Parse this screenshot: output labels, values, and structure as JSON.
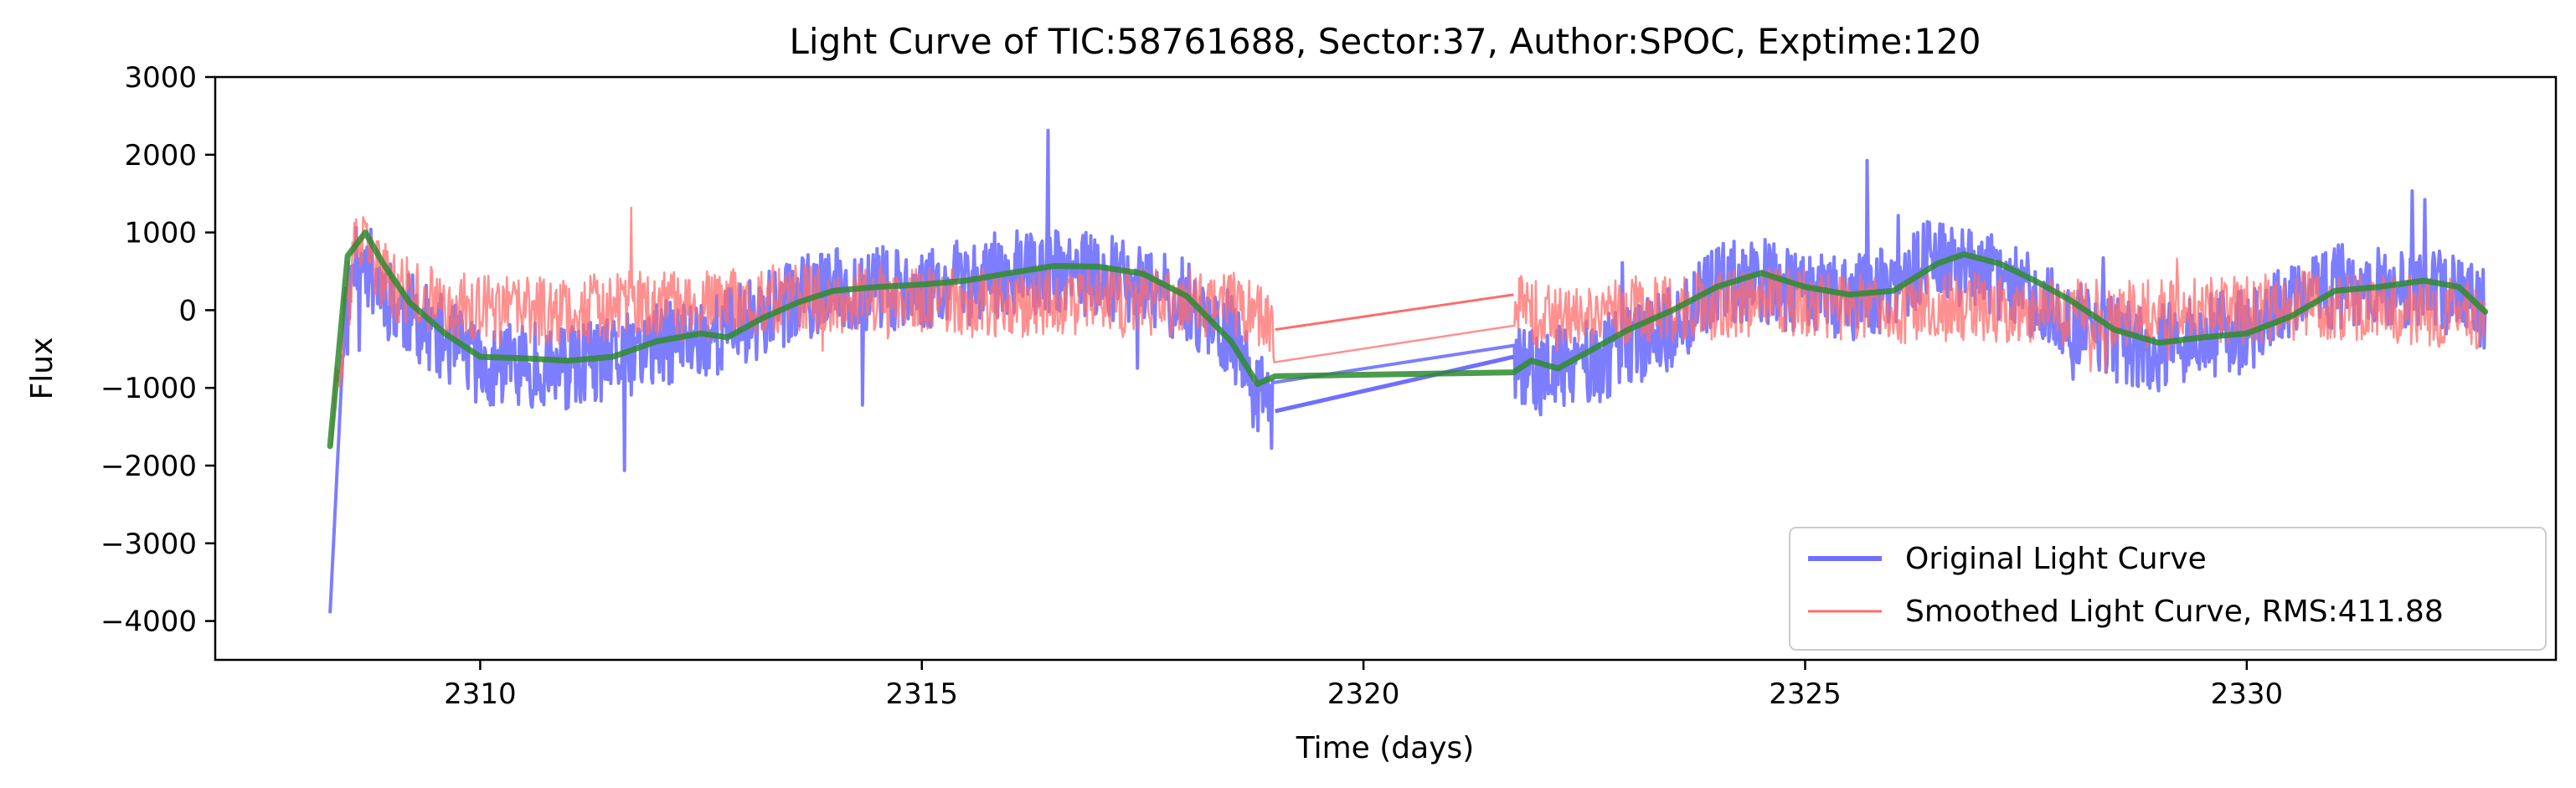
{
  "chart_data": {
    "type": "line",
    "title": "Light Curve of TIC:58761688, Sector:37, Author:SPOC, Exptime:120",
    "xlabel": "Time (days)",
    "ylabel": "Flux",
    "xlim": [
      2307,
      2333.5
    ],
    "ylim": [
      -4500,
      3000
    ],
    "xticks": [
      2310,
      2315,
      2320,
      2325,
      2330
    ],
    "yticks": [
      -4000,
      -3000,
      -2000,
      -1000,
      0,
      1000,
      2000,
      3000
    ],
    "xtick_labels": [
      "2310",
      "2315",
      "2320",
      "2325",
      "2330"
    ],
    "ytick_labels": [
      "−4000",
      "−3000",
      "−2000",
      "−1000",
      "0",
      "1000",
      "2000",
      "3000"
    ],
    "grid": false,
    "legend_position": "lower-right",
    "legend": [
      {
        "label": "Original Light Curve",
        "color": "#7070ff"
      },
      {
        "label": "Smoothed Light Curve, RMS:411.88",
        "color": "#ff6b6b"
      }
    ],
    "gap": [
      2319.0,
      2321.7
    ],
    "time_range": [
      2308.3,
      2332.7
    ],
    "series": [
      {
        "name": "Original Light Curve",
        "color": "#6f6fff",
        "noise_amplitude": 550,
        "x": [
          2308.3,
          2308.6,
          2309.0,
          2309.5,
          2310.0,
          2310.5,
          2311.0,
          2311.5,
          2312.0,
          2312.5,
          2313.0,
          2313.5,
          2314.0,
          2314.5,
          2315.0,
          2315.5,
          2316.0,
          2316.5,
          2317.0,
          2317.5,
          2318.0,
          2318.5,
          2318.8,
          2319.0,
          2321.7,
          2322.0,
          2322.5,
          2323.0,
          2323.5,
          2324.0,
          2324.5,
          2325.0,
          2325.5,
          2326.0,
          2326.5,
          2327.0,
          2327.5,
          2328.0,
          2328.5,
          2329.0,
          2329.5,
          2330.0,
          2330.5,
          2331.0,
          2331.5,
          2332.0,
          2332.7
        ],
        "y": [
          -1700,
          800,
          100,
          -300,
          -700,
          -700,
          -750,
          -650,
          -450,
          -350,
          -150,
          100,
          250,
          300,
          300,
          350,
          500,
          500,
          450,
          300,
          100,
          -300,
          -1100,
          -1300,
          -600,
          -800,
          -700,
          -500,
          -200,
          300,
          400,
          200,
          150,
          300,
          700,
          500,
          200,
          -100,
          -400,
          -500,
          -300,
          -300,
          100,
          300,
          350,
          300,
          0
        ]
      },
      {
        "name": "Smoothed Light Curve, RMS:411.88",
        "color": "#ff6b6b",
        "noise_amplitude": 450,
        "x": [
          2308.3,
          2308.6,
          2309.0,
          2309.5,
          2310.0,
          2310.5,
          2311.0,
          2311.5,
          2312.0,
          2312.5,
          2313.0,
          2313.5,
          2314.0,
          2314.5,
          2315.0,
          2315.5,
          2316.0,
          2316.5,
          2317.0,
          2317.5,
          2318.0,
          2318.5,
          2318.8,
          2319.0,
          2321.7,
          2322.0,
          2322.5,
          2323.0,
          2323.5,
          2324.0,
          2324.5,
          2325.0,
          2325.5,
          2326.0,
          2326.5,
          2327.0,
          2327.5,
          2328.0,
          2328.5,
          2329.0,
          2329.5,
          2330.0,
          2330.5,
          2331.0,
          2331.5,
          2332.0,
          2332.7
        ],
        "y": [
          -1500,
          900,
          300,
          100,
          0,
          0,
          0,
          50,
          50,
          50,
          100,
          150,
          150,
          150,
          100,
          100,
          100,
          100,
          100,
          100,
          100,
          100,
          0,
          -250,
          200,
          -100,
          -100,
          0,
          0,
          50,
          100,
          100,
          50,
          0,
          50,
          50,
          0,
          -50,
          -50,
          -50,
          0,
          0,
          50,
          50,
          0,
          0,
          -100
        ]
      },
      {
        "name": "",
        "color": "#2e8b2e",
        "x": [
          2308.3,
          2308.5,
          2308.7,
          2308.9,
          2309.2,
          2309.6,
          2310.0,
          2310.5,
          2311.0,
          2311.5,
          2312.0,
          2312.5,
          2312.8,
          2313.2,
          2313.6,
          2314.0,
          2314.5,
          2315.0,
          2315.5,
          2316.0,
          2316.5,
          2317.0,
          2317.5,
          2318.0,
          2318.5,
          2318.8,
          2319.0,
          2321.7,
          2321.9,
          2322.2,
          2322.6,
          2323.0,
          2323.5,
          2324.0,
          2324.5,
          2325.0,
          2325.5,
          2326.0,
          2326.5,
          2326.8,
          2327.2,
          2327.6,
          2328.0,
          2328.5,
          2329.0,
          2329.5,
          2330.0,
          2330.5,
          2331.0,
          2331.5,
          2332.0,
          2332.4,
          2332.7
        ],
        "y": [
          -1750,
          700,
          1000,
          600,
          100,
          -300,
          -600,
          -620,
          -650,
          -600,
          -400,
          -300,
          -350,
          -100,
          100,
          250,
          300,
          330,
          380,
          480,
          570,
          560,
          470,
          180,
          -400,
          -950,
          -850,
          -800,
          -650,
          -750,
          -500,
          -250,
          0,
          300,
          480,
          300,
          200,
          250,
          600,
          720,
          600,
          380,
          130,
          -250,
          -420,
          -350,
          -300,
          -80,
          250,
          300,
          380,
          300,
          -20
        ]
      }
    ]
  }
}
